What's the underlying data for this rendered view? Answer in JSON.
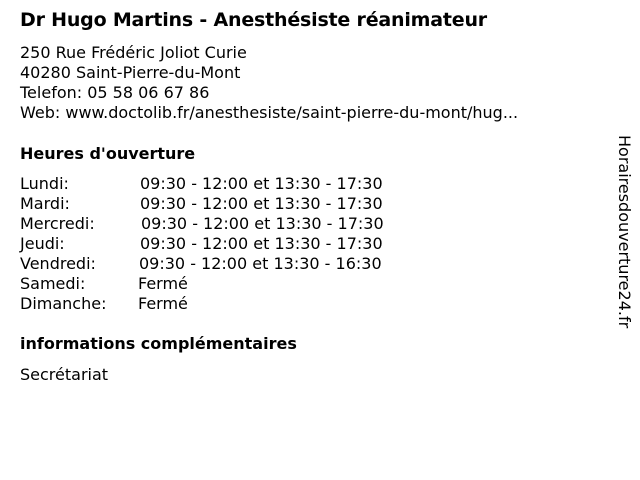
{
  "title": "Dr Hugo Martins - Anesthésiste réanimateur",
  "address": {
    "street": "250 Rue Frédéric Joliot Curie",
    "city": "40280 Saint-Pierre-du-Mont",
    "phone": "Telefon: 05 58 06 67 86",
    "web": "Web: www.doctolib.fr/anesthesiste/saint-pierre-du-mont/hug..."
  },
  "hours_heading": "Heures d'ouverture",
  "hours": [
    {
      "day": "Lundi:",
      "time": "09:30 - 12:00 et 13:30 - 17:30"
    },
    {
      "day": "Mardi:",
      "time": "09:30 - 12:00 et 13:30 - 17:30"
    },
    {
      "day": "Mercredi:",
      "time": "09:30 - 12:00 et 13:30 - 17:30"
    },
    {
      "day": "Jeudi:",
      "time": "09:30 - 12:00 et 13:30 - 17:30"
    },
    {
      "day": "Vendredi:",
      "time": "09:30 - 12:00 et 13:30 - 16:30"
    },
    {
      "day": "Samedi:",
      "time": "Fermé"
    },
    {
      "day": "Dimanche:",
      "time": "Fermé"
    }
  ],
  "info_heading": "informations complémentaires",
  "info_text": "Secrétariat",
  "watermark": "Horairesdouverture24.fr"
}
